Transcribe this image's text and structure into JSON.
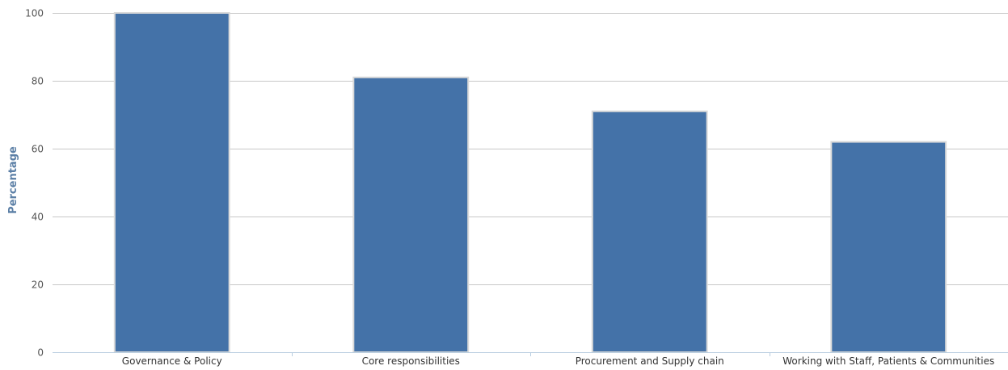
{
  "chart_data": {
    "type": "bar",
    "title": "",
    "xlabel": "",
    "ylabel": "Percentage",
    "ylim": [
      0,
      100
    ],
    "yticks": [
      0,
      20,
      40,
      60,
      80,
      100
    ],
    "grid": true,
    "categories": [
      "Governance & Policy",
      "Core responsibilities",
      "Procurement and Supply chain",
      "Working with Staff, Patients & Communities"
    ],
    "values": [
      100,
      81,
      71,
      62
    ],
    "colors": {
      "bar": "#4472a8",
      "bar_edge": "#d9d9d9",
      "grid": "#c8c8c8",
      "axis": "#b8cde0",
      "ylabel": "#5b7fa6"
    }
  }
}
